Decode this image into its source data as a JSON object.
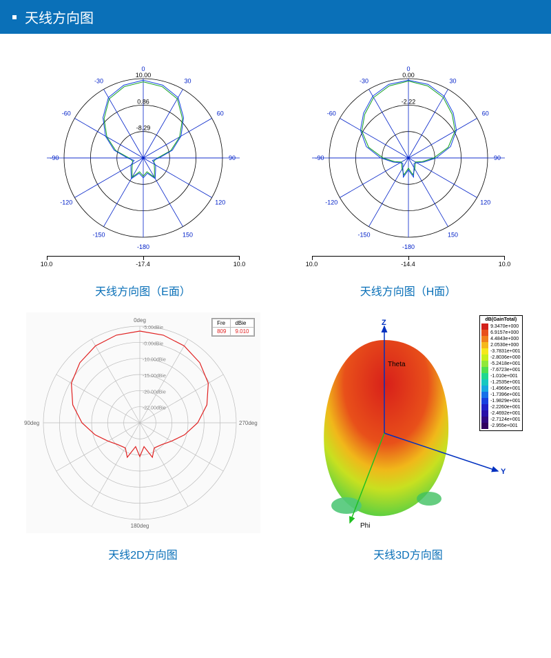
{
  "header": {
    "title": "天线方向图"
  },
  "colors": {
    "header_bg": "#0a70b8",
    "caption": "#0a70b8",
    "polar_axis": "#0020c8",
    "polar_circle": "#000000",
    "trace_blue": "#1040e0",
    "trace_green": "#10a020",
    "trace_red": "#e02020"
  },
  "polarE": {
    "caption": "天线方向图（E面）",
    "angle_ticks": [
      -180,
      -150,
      -120,
      -90,
      -60,
      -30,
      0,
      30,
      60,
      90,
      120,
      150
    ],
    "ring_labels": [
      "10.00",
      "0.86",
      "-8.29"
    ],
    "xaxis": {
      "left": "10.0",
      "center": "-17.4",
      "right": "10.0"
    },
    "trace_blue": [
      [
        0,
        0.98
      ],
      [
        15,
        0.95
      ],
      [
        30,
        0.88
      ],
      [
        45,
        0.72
      ],
      [
        60,
        0.55
      ],
      [
        75,
        0.38
      ],
      [
        90,
        0.2
      ],
      [
        105,
        0.12
      ],
      [
        120,
        0.18
      ],
      [
        135,
        0.22
      ],
      [
        150,
        0.3
      ],
      [
        165,
        0.2
      ],
      [
        180,
        0.25
      ],
      [
        195,
        0.2
      ],
      [
        210,
        0.3
      ],
      [
        225,
        0.22
      ],
      [
        240,
        0.18
      ],
      [
        255,
        0.12
      ],
      [
        270,
        0.2
      ],
      [
        285,
        0.38
      ],
      [
        300,
        0.55
      ],
      [
        315,
        0.72
      ],
      [
        330,
        0.88
      ],
      [
        345,
        0.95
      ],
      [
        360,
        0.98
      ]
    ],
    "trace_green": [
      [
        0,
        0.96
      ],
      [
        15,
        0.93
      ],
      [
        30,
        0.86
      ],
      [
        45,
        0.7
      ],
      [
        60,
        0.53
      ],
      [
        75,
        0.36
      ],
      [
        90,
        0.18
      ],
      [
        105,
        0.14
      ],
      [
        120,
        0.16
      ],
      [
        135,
        0.2
      ],
      [
        150,
        0.28
      ],
      [
        165,
        0.18
      ],
      [
        180,
        0.23
      ],
      [
        195,
        0.18
      ],
      [
        210,
        0.28
      ],
      [
        225,
        0.2
      ],
      [
        240,
        0.16
      ],
      [
        255,
        0.14
      ],
      [
        270,
        0.18
      ],
      [
        285,
        0.36
      ],
      [
        300,
        0.53
      ],
      [
        315,
        0.7
      ],
      [
        330,
        0.86
      ],
      [
        345,
        0.93
      ],
      [
        360,
        0.96
      ]
    ]
  },
  "polarH": {
    "caption": "天线方向图（H面）",
    "angle_ticks": [
      -180,
      -150,
      -120,
      -90,
      -60,
      -30,
      0,
      30,
      60,
      90,
      120,
      150
    ],
    "ring_labels": [
      "0.00",
      "-2.22"
    ],
    "xaxis": {
      "left": "10.0",
      "center": "-14.4",
      "right": "10.0"
    },
    "trace_blue": [
      [
        0,
        0.98
      ],
      [
        15,
        0.96
      ],
      [
        30,
        0.9
      ],
      [
        45,
        0.8
      ],
      [
        60,
        0.7
      ],
      [
        75,
        0.55
      ],
      [
        90,
        0.35
      ],
      [
        105,
        0.2
      ],
      [
        120,
        0.12
      ],
      [
        135,
        0.1
      ],
      [
        150,
        0.14
      ],
      [
        165,
        0.25
      ],
      [
        180,
        0.15
      ],
      [
        195,
        0.25
      ],
      [
        210,
        0.14
      ],
      [
        225,
        0.1
      ],
      [
        240,
        0.12
      ],
      [
        255,
        0.2
      ],
      [
        270,
        0.35
      ],
      [
        285,
        0.55
      ],
      [
        300,
        0.7
      ],
      [
        315,
        0.8
      ],
      [
        330,
        0.9
      ],
      [
        345,
        0.96
      ],
      [
        360,
        0.98
      ]
    ],
    "trace_green": [
      [
        0,
        0.97
      ],
      [
        15,
        0.94
      ],
      [
        30,
        0.88
      ],
      [
        45,
        0.78
      ],
      [
        60,
        0.68
      ],
      [
        75,
        0.52
      ],
      [
        90,
        0.32
      ],
      [
        105,
        0.18
      ],
      [
        120,
        0.1
      ],
      [
        135,
        0.12
      ],
      [
        150,
        0.16
      ],
      [
        165,
        0.22
      ],
      [
        180,
        0.13
      ],
      [
        195,
        0.22
      ],
      [
        210,
        0.16
      ],
      [
        225,
        0.12
      ],
      [
        240,
        0.1
      ],
      [
        255,
        0.18
      ],
      [
        270,
        0.32
      ],
      [
        285,
        0.52
      ],
      [
        300,
        0.68
      ],
      [
        315,
        0.78
      ],
      [
        330,
        0.88
      ],
      [
        345,
        0.94
      ],
      [
        360,
        0.97
      ]
    ]
  },
  "polar2d": {
    "caption": "天线2D方向图",
    "angle_labels": {
      "top": "0deg",
      "right": "270deg",
      "bottom": "180deg",
      "left": "90deg"
    },
    "ring_labels": [
      "-5.00dBie",
      "-0.00dBie",
      "-10.00dBie",
      "-15.00dBie",
      "-20.00dBie",
      "-22.00dBie"
    ],
    "legend": {
      "headers": [
        "Fre",
        "dBie"
      ],
      "row": [
        "809",
        "9.010"
      ]
    },
    "trace": [
      [
        0,
        0.95
      ],
      [
        15,
        0.94
      ],
      [
        30,
        0.92
      ],
      [
        45,
        0.88
      ],
      [
        60,
        0.82
      ],
      [
        75,
        0.72
      ],
      [
        90,
        0.6
      ],
      [
        105,
        0.48
      ],
      [
        120,
        0.38
      ],
      [
        135,
        0.32
      ],
      [
        150,
        0.3
      ],
      [
        160,
        0.38
      ],
      [
        170,
        0.25
      ],
      [
        180,
        0.35
      ],
      [
        190,
        0.25
      ],
      [
        200,
        0.38
      ],
      [
        210,
        0.3
      ],
      [
        225,
        0.32
      ],
      [
        240,
        0.38
      ],
      [
        255,
        0.48
      ],
      [
        270,
        0.6
      ],
      [
        285,
        0.72
      ],
      [
        300,
        0.82
      ],
      [
        315,
        0.88
      ],
      [
        330,
        0.92
      ],
      [
        345,
        0.94
      ],
      [
        360,
        0.95
      ]
    ]
  },
  "plot3d": {
    "caption": "天线3D方向图",
    "axis_labels": {
      "z": "Z",
      "y": "Y",
      "theta": "Theta",
      "phi": "Phi"
    },
    "legend_title": "dB(GainTotal)",
    "legend": [
      {
        "c": "#d2201a",
        "v": "9.3470e+000"
      },
      {
        "c": "#e8501a",
        "v": "6.9157e+000"
      },
      {
        "c": "#f0801a",
        "v": "4.4843e+000"
      },
      {
        "c": "#f5b81a",
        "v": "2.0530e+000"
      },
      {
        "c": "#f5e81a",
        "v": "-3.7831e+001"
      },
      {
        "c": "#c8f01a",
        "v": "-2.8036e+000"
      },
      {
        "c": "#90e83a",
        "v": "-5.2418e+001"
      },
      {
        "c": "#50e050",
        "v": "-7.6723e+001"
      },
      {
        "c": "#20d890",
        "v": "-1.010e+001"
      },
      {
        "c": "#18c8c0",
        "v": "-1.2535e+001"
      },
      {
        "c": "#18a8e0",
        "v": "-1.4966e+001"
      },
      {
        "c": "#1870e8",
        "v": "-1.7396e+001"
      },
      {
        "c": "#1840e0",
        "v": "-1.9829e+001"
      },
      {
        "c": "#2020c8",
        "v": "-2.2260e+001"
      },
      {
        "c": "#2810a8",
        "v": "-2.4692e+001"
      },
      {
        "c": "#300880",
        "v": "-2.7124e+001"
      },
      {
        "c": "#300060",
        "v": "-2.955e+001"
      }
    ]
  }
}
